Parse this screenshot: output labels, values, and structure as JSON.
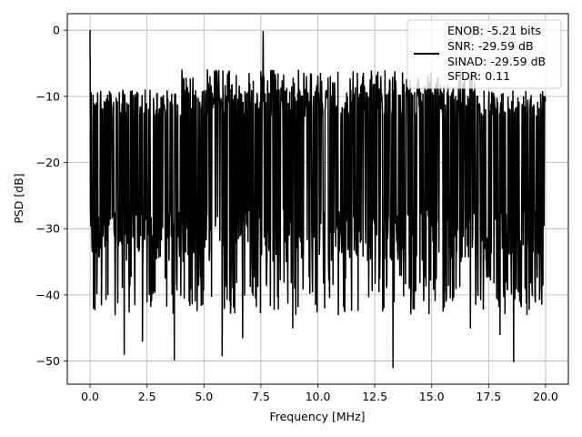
{
  "chart_data": {
    "type": "line",
    "title": "",
    "xlabel": "Frequency [MHz]",
    "ylabel": "PSD [dB]",
    "xlim": [
      -1.0,
      21.0
    ],
    "ylim": [
      -53.5,
      2.5
    ],
    "xticks": [
      0.0,
      2.5,
      5.0,
      7.5,
      10.0,
      12.5,
      15.0,
      17.5,
      20.0
    ],
    "xtick_labels": [
      "0.0",
      "2.5",
      "5.0",
      "7.5",
      "10.0",
      "12.5",
      "15.0",
      "17.5",
      "20.0"
    ],
    "yticks": [
      0,
      -10,
      -20,
      -30,
      -40,
      -50
    ],
    "ytick_labels": [
      "0",
      "−10",
      "−20",
      "−30",
      "−40",
      "−50"
    ],
    "grid": true,
    "legend_position": "top-right",
    "series": [
      {
        "name": "ENOB: -5.21 bits\nSNR: -29.59 dB\nSINAD: -29.59 dB\nSFDR: 0.11",
        "color": "#000000",
        "x_range": [
          0.0,
          20.0
        ],
        "points": 1200,
        "noise_floor_upper_db": -10,
        "noise_floor_lower_db": -35,
        "spikes": [
          {
            "x": 0.0,
            "y": 0.0
          },
          {
            "x": 7.6,
            "y": -0.2
          },
          {
            "x": 0.5,
            "y": -41.5
          },
          {
            "x": 1.1,
            "y": -43.0
          },
          {
            "x": 1.5,
            "y": -49.0
          },
          {
            "x": 2.3,
            "y": -47.0
          },
          {
            "x": 3.7,
            "y": -49.8
          },
          {
            "x": 5.8,
            "y": -49.2
          },
          {
            "x": 6.7,
            "y": -46.5
          },
          {
            "x": 8.9,
            "y": -45.0
          },
          {
            "x": 10.9,
            "y": -43.0
          },
          {
            "x": 13.3,
            "y": -51.0
          },
          {
            "x": 16.7,
            "y": -45.0
          },
          {
            "x": 18.0,
            "y": -46.0
          },
          {
            "x": 18.6,
            "y": -50.1
          },
          {
            "x": 19.1,
            "y": -39.0
          }
        ]
      }
    ],
    "legend_lines": [
      "ENOB: -5.21 bits",
      "SNR: -29.59 dB",
      "SINAD: -29.59 dB",
      "SFDR: 0.11"
    ]
  }
}
